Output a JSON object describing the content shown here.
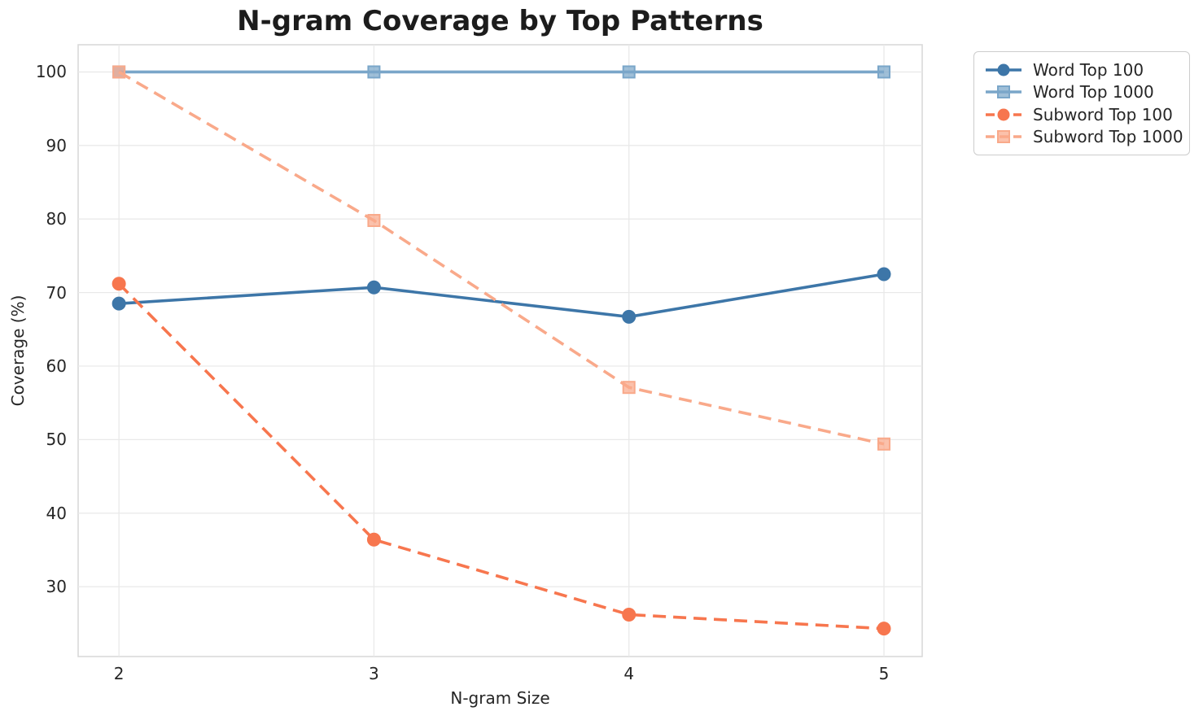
{
  "chart_data": {
    "type": "line",
    "title": "N-gram Coverage by Top Patterns",
    "xlabel": "N-gram Size",
    "ylabel": "Coverage (%)",
    "x": [
      2,
      3,
      4,
      5
    ],
    "xticks": [
      2,
      3,
      4,
      5
    ],
    "yticks": [
      30,
      40,
      50,
      60,
      70,
      80,
      90,
      100
    ],
    "xlim": [
      1.84,
      5.15
    ],
    "ylim": [
      20.5,
      103.7
    ],
    "grid": true,
    "legend_position": "outside upper right",
    "colors": {
      "background": "#ffffff",
      "gridline": "#e9e9e9",
      "plot_border": "#d7d7d7",
      "text": "#262626",
      "title_text": "#1c1c1c",
      "legend_border": "#cccccc"
    },
    "series": [
      {
        "name": "Word Top 100",
        "color": "#3d76a8",
        "linestyle": "solid",
        "marker": "circle",
        "values": [
          68.5,
          70.7,
          66.7,
          72.5
        ]
      },
      {
        "name": "Word Top 1000",
        "color": "#7aa6c9",
        "linestyle": "solid",
        "marker": "square",
        "values": [
          100,
          100,
          100,
          100
        ]
      },
      {
        "name": "Subword Top 100",
        "color": "#f7764e",
        "linestyle": "dashed",
        "marker": "circle",
        "values": [
          71.2,
          36.4,
          26.2,
          24.3
        ]
      },
      {
        "name": "Subword Top 1000",
        "color": "#f9a98a",
        "linestyle": "dashed",
        "marker": "square",
        "values": [
          100,
          79.8,
          57.1,
          49.4
        ]
      }
    ]
  }
}
